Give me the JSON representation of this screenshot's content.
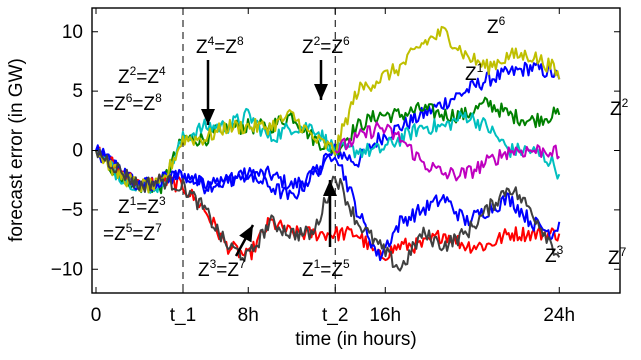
{
  "chart_data": {
    "type": "line",
    "title": "",
    "xlabel": "time (in hours)",
    "ylabel": "forecast error (in GW)",
    "xlim": [
      0,
      24
    ],
    "ylim": [
      -12,
      12
    ],
    "x_ticks": [
      {
        "value": 0,
        "label": "0"
      },
      {
        "value": 4,
        "label": "t_1"
      },
      {
        "value": 7,
        "label": "8h"
      },
      {
        "value": 11,
        "label": "t_2"
      },
      {
        "value": 13.3,
        "label": "16h"
      },
      {
        "value": 21.3,
        "label": "24h"
      }
    ],
    "y_ticks": [
      {
        "value": -10,
        "label": "−10"
      },
      {
        "value": -5,
        "label": "−5"
      },
      {
        "value": 0,
        "label": "0"
      },
      {
        "value": 5,
        "label": "5"
      },
      {
        "value": 10,
        "label": "10"
      }
    ],
    "grid": false,
    "vlines": [
      4,
      11
    ],
    "series": [
      {
        "name": "Z1",
        "color": "#0000ff",
        "x": [
          0,
          1,
          2,
          3,
          4,
          5,
          6,
          7,
          8,
          9,
          10,
          11,
          12,
          13,
          14,
          15,
          16,
          17,
          18,
          19,
          20,
          21,
          21.3
        ],
        "y": [
          0,
          -1.5,
          -3,
          -2.5,
          -2,
          -3,
          -2.5,
          -2,
          -2,
          -3,
          -2,
          0,
          -1,
          1,
          2,
          3,
          4,
          5,
          6,
          6.5,
          7,
          6.5,
          6
        ]
      },
      {
        "name": "Z2",
        "color": "#008000",
        "x": [
          0,
          1,
          2,
          3,
          4,
          5,
          6,
          7,
          8,
          9,
          10,
          11,
          12,
          13,
          14,
          15,
          16,
          17,
          18,
          19,
          20,
          21,
          21.3
        ],
        "y": [
          0,
          -2,
          -3,
          -3,
          1,
          1,
          2,
          2,
          2,
          3,
          1,
          0,
          2,
          3,
          3,
          3.5,
          3,
          3,
          4,
          3,
          2.5,
          3,
          3
        ]
      },
      {
        "name": "Z3",
        "color": "#ff0000",
        "x": [
          0,
          1,
          2,
          3,
          4,
          5,
          6,
          7,
          8,
          9,
          10,
          11,
          12,
          13,
          14,
          15,
          16,
          17,
          18,
          19,
          20,
          21,
          21.3
        ],
        "y": [
          0,
          -1.5,
          -3,
          -2.5,
          -3,
          -5,
          -8,
          -9,
          -6,
          -7,
          -7,
          -7,
          -7,
          -9,
          -8,
          -8,
          -7,
          -8,
          -8,
          -7,
          -7,
          -7,
          -7
        ]
      },
      {
        "name": "Z4",
        "color": "#00bfbf",
        "x": [
          0,
          1,
          2,
          3,
          4,
          5,
          6,
          7,
          8,
          9,
          10,
          11,
          12,
          13,
          14,
          15,
          16,
          17,
          18,
          19,
          20,
          21,
          21.3
        ],
        "y": [
          0,
          -2,
          -3,
          -3,
          1,
          2,
          2,
          3,
          1,
          2,
          2,
          0,
          0,
          0,
          1,
          2,
          2,
          3,
          2,
          0,
          0,
          -1,
          -2
        ]
      },
      {
        "name": "Z5",
        "color": "#0000ff",
        "x": [
          0,
          1,
          2,
          3,
          4,
          5,
          6,
          7,
          8,
          9,
          10,
          11,
          12,
          13,
          14,
          15,
          16,
          17,
          18,
          19,
          20,
          21,
          21.3
        ],
        "y": [
          0,
          -1.5,
          -3,
          -2.5,
          -2,
          -3,
          -2.5,
          -2,
          -3,
          -4,
          -2,
          0,
          -5,
          -9,
          -6,
          -5,
          -4,
          -6,
          -5,
          -4,
          -6,
          -7,
          -6
        ]
      },
      {
        "name": "Z6",
        "color": "#bfbf00",
        "x": [
          0,
          1,
          2,
          3,
          4,
          5,
          6,
          7,
          8,
          9,
          10,
          11,
          12,
          13,
          14,
          15,
          16,
          17,
          18,
          19,
          20,
          21,
          21.3
        ],
        "y": [
          0,
          -2,
          -3,
          -3,
          1,
          1,
          2,
          2,
          2,
          3,
          1,
          0,
          5,
          6,
          7,
          9,
          10,
          8,
          7,
          8,
          8,
          7,
          6
        ]
      },
      {
        "name": "Z7",
        "color": "#404040",
        "x": [
          0,
          1,
          2,
          3,
          4,
          5,
          6,
          7,
          8,
          9,
          10,
          11,
          12,
          13,
          14,
          15,
          16,
          17,
          18,
          19,
          20,
          21,
          21.3
        ],
        "y": [
          0,
          -1.5,
          -3,
          -2.5,
          -3,
          -5,
          -8,
          -9,
          -6,
          -7,
          -7,
          -2,
          -6,
          -8,
          -10,
          -7,
          -8,
          -7,
          -5,
          -3,
          -5,
          -8,
          -9
        ]
      },
      {
        "name": "Z8",
        "color": "#bf00bf",
        "x": [
          11,
          12,
          13,
          14,
          15,
          16,
          17,
          18,
          19,
          20,
          21,
          21.3
        ],
        "y": [
          0,
          1,
          2,
          1,
          -1,
          -2,
          -2,
          -1,
          0,
          0,
          0,
          -0.5
        ]
      }
    ],
    "annotations": [
      {
        "parts": [
          [
            "Z",
            "2"
          ],
          [
            "=Z",
            "4"
          ]
        ]
      },
      {
        "parts": [
          [
            "=Z",
            "6"
          ],
          [
            "=Z",
            "8"
          ]
        ]
      },
      {
        "parts": [
          [
            "Z",
            "1"
          ],
          [
            "=Z",
            "3"
          ]
        ]
      },
      {
        "parts": [
          [
            "=Z",
            "5"
          ],
          [
            "=Z",
            "7"
          ]
        ]
      },
      {
        "parts": [
          [
            "Z",
            "4"
          ],
          [
            "=Z",
            "8"
          ]
        ]
      },
      {
        "parts": [
          [
            "Z",
            "2"
          ],
          [
            "=Z",
            "6"
          ]
        ]
      },
      {
        "parts": [
          [
            "Z",
            "3"
          ],
          [
            "=Z",
            "7"
          ]
        ]
      },
      {
        "parts": [
          [
            "Z",
            "1"
          ],
          [
            "=Z",
            "5"
          ]
        ]
      },
      {
        "parts": [
          [
            "Z",
            "6"
          ]
        ]
      },
      {
        "parts": [
          [
            "Z",
            "1"
          ]
        ]
      },
      {
        "parts": [
          [
            "Z",
            "2"
          ]
        ]
      },
      {
        "parts": [
          [
            "Z",
            "3"
          ]
        ]
      },
      {
        "parts": [
          [
            "Z",
            "7"
          ]
        ]
      }
    ]
  }
}
